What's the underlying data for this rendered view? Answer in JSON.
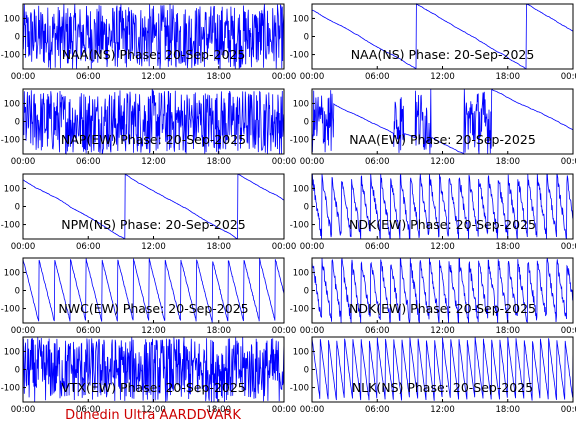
{
  "footer": "Dunedin Ultra AARDDVARK",
  "colors": {
    "trace": "#0000ff",
    "frame": "#000000",
    "footer": "#cc0000"
  },
  "shared_axes": {
    "x_ticks": [
      "00:00",
      "06:00",
      "12:00",
      "18:00",
      "00:00"
    ],
    "y_ticks": [
      "100",
      "0",
      "-100"
    ],
    "xlim_hours": [
      0,
      24
    ],
    "ylim_degrees": [
      -180,
      180
    ]
  },
  "chart_data": [
    {
      "type": "line",
      "title": "NAA(NS) Phase: 20-Sep-2025",
      "column": "left",
      "row": 1,
      "pattern": "saturated"
    },
    {
      "type": "line",
      "title": "NAP(EW) Phase: 20-Sep-2025",
      "column": "left",
      "row": 2,
      "pattern": "noisy-then-saturated"
    },
    {
      "type": "line",
      "title": "NPM(NS) Phase: 20-Sep-2025",
      "column": "left",
      "row": 3,
      "pattern": "slow-drift"
    },
    {
      "type": "line",
      "title": "NWC(EW) Phase: 20-Sep-2025",
      "column": "left",
      "row": 4,
      "pattern": "sawtooth"
    },
    {
      "type": "line",
      "title": "VTX(EW) Phase: 20-Sep-2025",
      "column": "left",
      "row": 5,
      "pattern": "saturated"
    },
    {
      "type": "line",
      "title": "NAA(NS) Phase: 20-Sep-2025",
      "column": "right",
      "row": 1,
      "pattern": "slow-drift"
    },
    {
      "type": "line",
      "title": "NAA(EW) Phase: 20-Sep-2025",
      "column": "right",
      "row": 2,
      "pattern": "drift-with-bursts"
    },
    {
      "type": "line",
      "title": "NDK(EW) Phase: 20-Sep-2025",
      "column": "right",
      "row": 3,
      "pattern": "dense-sawtooth"
    },
    {
      "type": "line",
      "title": "NDK(EW) Phase: 20-Sep-2025",
      "column": "right",
      "row": 4,
      "pattern": "dense-sawtooth"
    },
    {
      "type": "line",
      "title": "NLK(NS) Phase: 20-Sep-2025",
      "column": "right",
      "row": 5,
      "pattern": "fast-sawtooth"
    }
  ]
}
